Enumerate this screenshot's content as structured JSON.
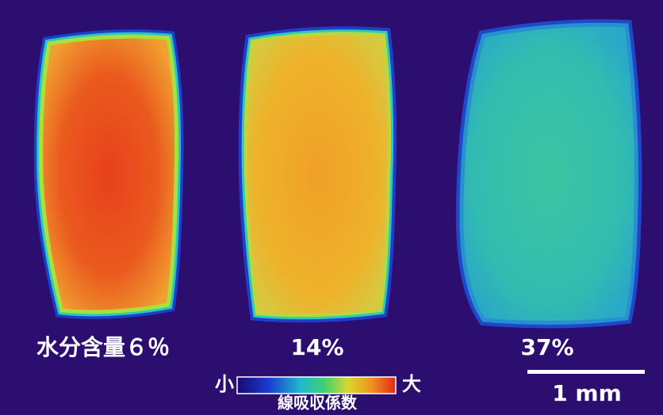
{
  "labels": {
    "sample_1": "水分含量６％",
    "sample_2": "14%",
    "sample_3": "37%"
  },
  "colorbar": {
    "low": "小",
    "high": "大",
    "title": "線吸収係数"
  },
  "scale_bar": "1 mm"
}
